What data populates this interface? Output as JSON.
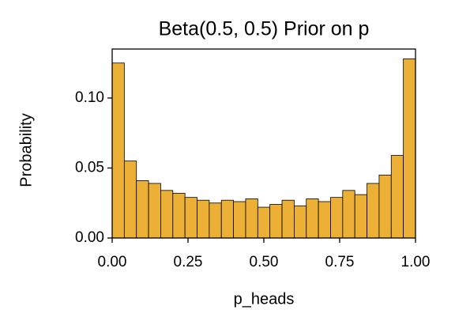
{
  "chart_data": {
    "type": "histogram",
    "title": "Beta(0.5, 0.5) Prior on p",
    "x_label": "p_heads",
    "y_label": "Probability",
    "bins": [
      0,
      0.04,
      0.08,
      0.12,
      0.16,
      0.2,
      0.24,
      0.28,
      0.32,
      0.36,
      0.4,
      0.44,
      0.48,
      0.52,
      0.56,
      0.6,
      0.64,
      0.68,
      0.72,
      0.76,
      0.8,
      0.84,
      0.88,
      0.92,
      0.96,
      1
    ],
    "values": [
      0.125,
      0.055,
      0.041,
      0.039,
      0.034,
      0.032,
      0.029,
      0.027,
      0.025,
      0.027,
      0.026,
      0.028,
      0.022,
      0.024,
      0.027,
      0.023,
      0.028,
      0.026,
      0.029,
      0.034,
      0.031,
      0.039,
      0.045,
      0.059,
      0.128
    ],
    "color": "#ebb035",
    "edgecolor": "#000000",
    "xlim": [
      0,
      1
    ],
    "ylim": [
      0,
      0.135
    ],
    "xticks": [
      {
        "value": 0,
        "label": "0.00"
      },
      {
        "value": 0.25,
        "label": "0.25"
      },
      {
        "value": 0.5,
        "label": "0.50"
      },
      {
        "value": 0.75,
        "label": "0.75"
      },
      {
        "value": 1,
        "label": "1.00"
      }
    ],
    "yticks": [
      {
        "value": 0,
        "label": "0.00"
      },
      {
        "value": 0.05,
        "label": "0.05"
      },
      {
        "value": 0.1,
        "label": "0.10"
      }
    ],
    "grid": false
  }
}
